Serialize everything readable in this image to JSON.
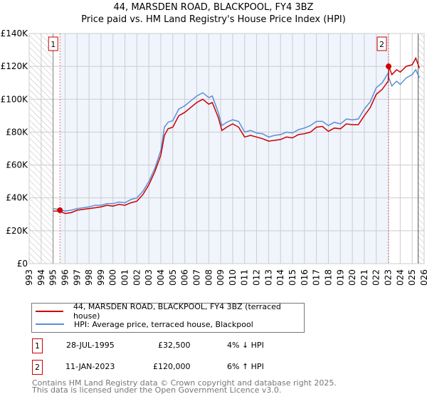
{
  "title": "44, MARSDEN ROAD, BLACKPOOL, FY4 3BZ",
  "subtitle": "Price paid vs. HM Land Registry's House Price Index (HPI)",
  "chart_data": {
    "type": "line",
    "title": "44, MARSDEN ROAD, BLACKPOOL, FY4 3BZ",
    "subtitle": "Price paid vs. HM Land Registry's House Price Index (HPI)",
    "xlim": [
      1993,
      2026
    ],
    "ylim": [
      0,
      140000
    ],
    "yticks": [
      0,
      20000,
      40000,
      60000,
      80000,
      100000,
      120000,
      140000
    ],
    "ytick_labels": [
      "£0",
      "£20K",
      "£40K",
      "£60K",
      "£80K",
      "£100K",
      "£120K",
      "£140K"
    ],
    "xticks": [
      "1993",
      "1994",
      "1995",
      "1996",
      "1997",
      "1998",
      "1999",
      "2000",
      "2001",
      "2002",
      "2003",
      "2004",
      "2005",
      "2006",
      "2007",
      "2008",
      "2009",
      "2010",
      "2011",
      "2012",
      "2013",
      "2014",
      "2015",
      "2016",
      "2017",
      "2018",
      "2019",
      "2020",
      "2021",
      "2022",
      "2023",
      "2024",
      "2025",
      "2026"
    ],
    "grid": true,
    "x": [
      1995,
      1995.5,
      1996,
      1996.5,
      1997,
      1997.5,
      1998,
      1998.5,
      1999,
      1999.5,
      2000,
      2000.5,
      2001,
      2001.5,
      2002,
      2002.5,
      2003,
      2003.5,
      2004,
      2004.3,
      2004.6,
      2005,
      2005.5,
      2006,
      2006.5,
      2007,
      2007.5,
      2008,
      2008.3,
      2008.8,
      2009.1,
      2009.5,
      2010,
      2010.5,
      2011,
      2011.5,
      2012,
      2012.5,
      2013,
      2013.5,
      2014,
      2014.5,
      2015,
      2015.5,
      2016,
      2016.5,
      2017,
      2017.5,
      2018,
      2018.5,
      2019,
      2019.5,
      2020,
      2020.5,
      2021,
      2021.5,
      2022,
      2022.5,
      2023,
      2023.05,
      2023.3,
      2023.7,
      2024,
      2024.5,
      2025,
      2025.3,
      2025.6
    ],
    "series": [
      {
        "name": "44, MARSDEN ROAD, BLACKPOOL, FY4 3BZ (terraced house)",
        "color": "#cc0000",
        "values": [
          32000,
          32000,
          30500,
          31000,
          32500,
          33000,
          33500,
          34000,
          34500,
          35500,
          35000,
          36000,
          35500,
          37000,
          38000,
          42000,
          48000,
          56000,
          66000,
          78000,
          82000,
          83000,
          90000,
          92000,
          95000,
          98000,
          100000,
          97000,
          98000,
          89000,
          81000,
          83000,
          85000,
          83000,
          77000,
          78000,
          77000,
          76000,
          74500,
          75000,
          75500,
          77000,
          76500,
          78500,
          79000,
          80000,
          83000,
          83500,
          80500,
          82500,
          82000,
          85000,
          84500,
          84500,
          90000,
          95000,
          103000,
          106000,
          111000,
          120000,
          115000,
          118000,
          116500,
          120000,
          121000,
          125000,
          119000
        ]
      },
      {
        "name": "HPI: Average price, terraced house, Blackpool",
        "color": "#5b8fd6",
        "values": [
          33500,
          33000,
          32000,
          32500,
          33500,
          34000,
          34500,
          35500,
          35500,
          36500,
          36500,
          37500,
          37000,
          39000,
          40000,
          44000,
          50000,
          58000,
          69000,
          83000,
          86000,
          87000,
          94000,
          96000,
          99000,
          102000,
          104000,
          101000,
          102000,
          92000,
          84000,
          86000,
          87500,
          86500,
          80000,
          81000,
          79500,
          79000,
          77000,
          78000,
          78500,
          80000,
          79500,
          81500,
          82500,
          84000,
          86500,
          86500,
          84000,
          86000,
          85000,
          88000,
          87500,
          88000,
          94000,
          98500,
          107000,
          110000,
          116000,
          113000,
          108000,
          111000,
          109000,
          113000,
          115000,
          118000,
          113000
        ]
      }
    ],
    "sales": [
      {
        "label": "1",
        "x": 1995.57,
        "price": 32500
      },
      {
        "label": "2",
        "x": 2023.03,
        "price": 120000
      }
    ],
    "legend": "below"
  },
  "legend": {
    "items": [
      {
        "label": "44, MARSDEN ROAD, BLACKPOOL, FY4 3BZ (terraced house)",
        "color": "#cc0000"
      },
      {
        "label": "HPI: Average price, terraced house, Blackpool",
        "color": "#5b8fd6"
      }
    ]
  },
  "sales_table": [
    {
      "num": "1",
      "date": "28-JUL-1995",
      "price": "£32,500",
      "hpi": "4% ↓ HPI"
    },
    {
      "num": "2",
      "date": "11-JAN-2023",
      "price": "£120,000",
      "hpi": "6% ↑ HPI"
    }
  ],
  "footer": [
    "Contains HM Land Registry data © Crown copyright and database right 2025.",
    "This data is licensed under the Open Government Licence v3.0."
  ]
}
